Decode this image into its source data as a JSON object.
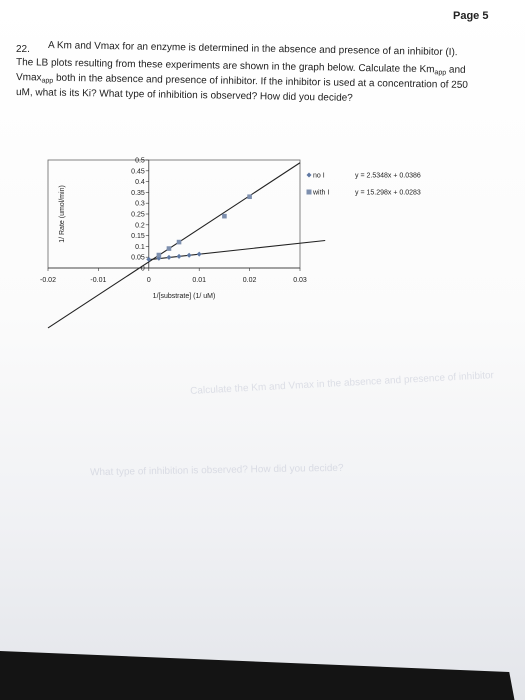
{
  "page": {
    "number": "Page 5"
  },
  "question": {
    "number": "22.",
    "line1": "A Km and Vmax for an enzyme is determined in the absence and presence of an inhibitor (I).",
    "line2_a": "The LB plots resulting from these experiments are shown in the graph below.  Calculate the Km",
    "line2_sub": "app",
    "line2_b": " and",
    "line3_a": "Vmax",
    "line3_sub": "app",
    "line3_b": " both in the absence and presence of inhibitor.  If the inhibitor is used at a concentration of 250",
    "line4": "uM, what is its Ki?  What type of inhibition is observed?  How did you decide?"
  },
  "chart_data": {
    "type": "scatter",
    "xlabel": "1/[substrate] (1/ uM)",
    "ylabel": "1/ Rate (umol/min)",
    "xlim": [
      -0.02,
      0.03
    ],
    "ylim": [
      0,
      0.5
    ],
    "x_ticks": [
      "-0.02",
      "-0.01",
      "0",
      "0.01",
      "0.02",
      "0.03"
    ],
    "y_ticks": [
      "0",
      "0.05",
      "0.1",
      "0.15",
      "0.2",
      "0.25",
      "0.3",
      "0.35",
      "0.4",
      "0.45",
      "0.5"
    ],
    "grid": false,
    "legend_position": "right",
    "series": [
      {
        "name": "no I",
        "marker": "diamond",
        "equation": "y = 2.5348x + 0.0386",
        "slope": 2.5348,
        "intercept": 0.0386,
        "points": [
          [
            0.0,
            0.04
          ],
          [
            0.002,
            0.045
          ],
          [
            0.004,
            0.049
          ],
          [
            0.006,
            0.054
          ],
          [
            0.008,
            0.059
          ],
          [
            0.01,
            0.064
          ]
        ]
      },
      {
        "name": "with I",
        "marker": "square",
        "equation": "y = 15.298x + 0.0283",
        "slope": 15.298,
        "intercept": 0.0283,
        "points": [
          [
            0.002,
            0.06
          ],
          [
            0.004,
            0.09
          ],
          [
            0.006,
            0.12
          ],
          [
            0.015,
            0.24
          ],
          [
            0.02,
            0.33
          ]
        ]
      }
    ],
    "colors": {
      "line": "#222222",
      "no_i_marker": "#5e78a3",
      "with_i_marker": "#7d8fae"
    }
  },
  "ghost_text": {
    "a": "Calculate the Km and Vmax in the absence and presence of inhibitor",
    "b": "What type of inhibition is observed? How did you decide?"
  }
}
